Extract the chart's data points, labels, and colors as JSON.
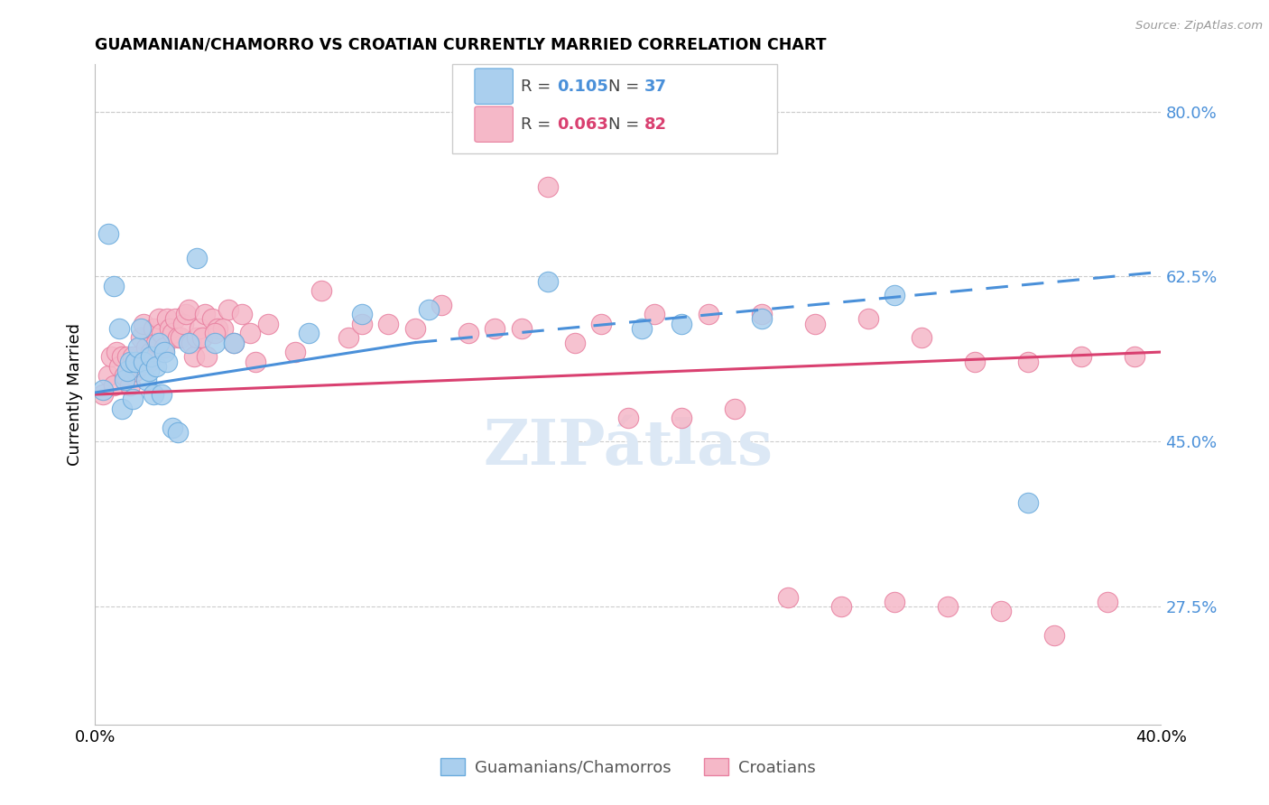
{
  "title": "GUAMANIAN/CHAMORRO VS CROATIAN CURRENTLY MARRIED CORRELATION CHART",
  "source": "Source: ZipAtlas.com",
  "ylabel": "Currently Married",
  "right_yticks": [
    27.5,
    45.0,
    62.5,
    80.0
  ],
  "right_ytick_labels": [
    "27.5%",
    "45.0%",
    "62.5%",
    "80.0%"
  ],
  "xmin": 0.0,
  "xmax": 40.0,
  "ymin": 15.0,
  "ymax": 85.0,
  "blue_fill": "#aacfee",
  "pink_fill": "#f5b8c8",
  "blue_edge": "#6aabdd",
  "pink_edge": "#e880a0",
  "trend_blue": "#4a90d9",
  "trend_pink": "#d94070",
  "grid_color": "#cccccc",
  "watermark_color": "#dce8f5",
  "legend_R_blue": "0.105",
  "legend_N_blue": "37",
  "legend_R_pink": "0.063",
  "legend_N_pink": "82",
  "blue_x": [
    0.3,
    0.5,
    0.7,
    0.9,
    1.0,
    1.1,
    1.2,
    1.3,
    1.4,
    1.5,
    1.6,
    1.7,
    1.8,
    1.9,
    2.0,
    2.1,
    2.2,
    2.3,
    2.4,
    2.5,
    2.6,
    2.7,
    2.9,
    3.1,
    3.5,
    3.8,
    4.5,
    5.2,
    8.0,
    10.0,
    12.5,
    17.0,
    20.5,
    22.0,
    25.0,
    30.0,
    35.0
  ],
  "blue_y": [
    50.5,
    67.0,
    61.5,
    57.0,
    48.5,
    51.5,
    52.5,
    53.5,
    49.5,
    53.5,
    55.0,
    57.0,
    53.5,
    51.5,
    52.5,
    54.0,
    50.0,
    53.0,
    55.5,
    50.0,
    54.5,
    53.5,
    46.5,
    46.0,
    55.5,
    64.5,
    55.5,
    55.5,
    56.5,
    58.5,
    59.0,
    62.0,
    57.0,
    57.5,
    58.0,
    60.5,
    38.5
  ],
  "pink_x": [
    0.3,
    0.5,
    0.6,
    0.7,
    0.8,
    0.9,
    1.0,
    1.1,
    1.2,
    1.3,
    1.4,
    1.5,
    1.6,
    1.7,
    1.8,
    1.9,
    2.0,
    2.1,
    2.2,
    2.3,
    2.4,
    2.5,
    2.6,
    2.7,
    2.8,
    2.9,
    3.0,
    3.1,
    3.2,
    3.3,
    3.4,
    3.5,
    3.6,
    3.7,
    3.8,
    3.9,
    4.0,
    4.1,
    4.2,
    4.4,
    4.6,
    4.8,
    5.0,
    5.2,
    5.5,
    5.8,
    6.5,
    7.5,
    8.5,
    9.5,
    11.0,
    13.0,
    15.0,
    17.0,
    19.0,
    21.0,
    23.0,
    25.0,
    27.0,
    29.0,
    31.0,
    33.0,
    35.0,
    37.0,
    39.0,
    4.5,
    6.0,
    10.0,
    12.0,
    14.0,
    16.0,
    18.0,
    20.0,
    22.0,
    24.0,
    26.0,
    28.0,
    30.0,
    32.0,
    34.0,
    36.0,
    38.0
  ],
  "pink_y": [
    50.0,
    52.0,
    54.0,
    51.0,
    54.5,
    53.0,
    54.0,
    52.0,
    54.0,
    51.0,
    54.0,
    52.5,
    53.0,
    56.0,
    57.5,
    55.0,
    53.5,
    54.5,
    57.0,
    55.5,
    58.0,
    56.5,
    55.0,
    58.0,
    57.0,
    56.5,
    58.0,
    56.0,
    56.0,
    57.5,
    58.5,
    59.0,
    55.5,
    54.0,
    56.0,
    57.0,
    56.0,
    58.5,
    54.0,
    58.0,
    57.0,
    57.0,
    59.0,
    55.5,
    58.5,
    56.5,
    57.5,
    54.5,
    61.0,
    56.0,
    57.5,
    59.5,
    57.0,
    72.0,
    57.5,
    58.5,
    58.5,
    58.5,
    57.5,
    58.0,
    56.0,
    53.5,
    53.5,
    54.0,
    54.0,
    56.5,
    53.5,
    57.5,
    57.0,
    56.5,
    57.0,
    55.5,
    47.5,
    47.5,
    48.5,
    28.5,
    27.5,
    28.0,
    27.5,
    27.0,
    24.5,
    28.0
  ],
  "blue_trend_x0": 0.0,
  "blue_trend_y0": 50.2,
  "blue_trend_x1": 12.0,
  "blue_trend_y1": 55.5,
  "blue_dash_x0": 12.0,
  "blue_dash_y0": 55.5,
  "blue_dash_x1": 40.0,
  "blue_dash_y1": 63.0,
  "pink_trend_x0": 0.0,
  "pink_trend_y0": 50.0,
  "pink_trend_x1": 40.0,
  "pink_trend_y1": 54.5
}
